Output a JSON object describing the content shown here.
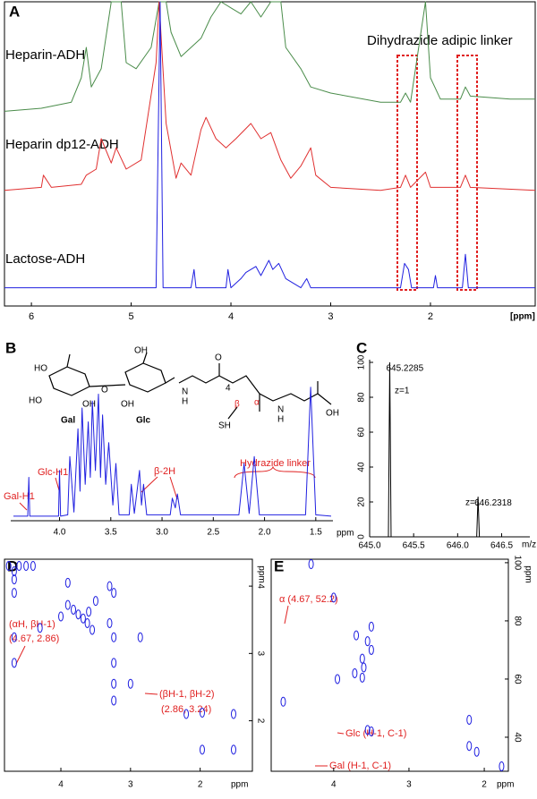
{
  "chart_data": [
    {
      "panel": "A",
      "type": "line",
      "x_label": "[ppm]",
      "annotations": [
        "Dihydrazide adipic linker"
      ],
      "xlim": [
        6.27,
        0.95
      ],
      "xticks": [
        6,
        5,
        4,
        3,
        2
      ],
      "ylim": [
        0,
        100
      ],
      "series": [
        {
          "name": "Heparin-ADH",
          "color": "#4a8c4a",
          "x": [
            6.27,
            5.9,
            5.6,
            5.5,
            5.45,
            5.4,
            5.3,
            5.2,
            5.1,
            5.05,
            4.95,
            4.8,
            4.72,
            4.65,
            4.6,
            4.5,
            4.3,
            4.2,
            4.1,
            4.0,
            3.9,
            3.8,
            3.7,
            3.6,
            3.5,
            3.45,
            3.3,
            3.2,
            3.0,
            2.5,
            2.3,
            2.25,
            2.2,
            2.05,
            2.0,
            1.9,
            1.7,
            1.65,
            1.6,
            1.2,
            0.95
          ],
          "values": [
            64,
            65,
            67,
            75,
            85,
            72,
            78,
            100,
            100,
            80,
            78,
            85,
            100,
            100,
            90,
            82,
            88,
            95,
            100,
            98,
            96,
            100,
            95,
            100,
            100,
            85,
            78,
            72,
            70,
            67,
            67,
            70,
            67,
            100,
            75,
            68,
            68,
            72,
            69,
            68,
            68
          ]
        },
        {
          "name": "Heparin dp12-ADH",
          "color": "#e03030",
          "x": [
            6.27,
            5.9,
            5.88,
            5.8,
            5.5,
            5.45,
            5.35,
            5.3,
            5.2,
            5.15,
            5.05,
            4.9,
            4.75,
            4.72,
            4.65,
            4.55,
            4.5,
            4.4,
            4.3,
            4.25,
            4.15,
            4.05,
            3.95,
            3.8,
            3.7,
            3.6,
            3.5,
            3.4,
            3.3,
            3.2,
            3.15,
            3.0,
            2.5,
            2.3,
            2.25,
            2.2,
            2.05,
            2.0,
            1.7,
            1.65,
            1.6,
            0.95
          ],
          "values": [
            38,
            39,
            43,
            39,
            40,
            43,
            45,
            55,
            47,
            52,
            45,
            48,
            80,
            100,
            60,
            42,
            47,
            43,
            58,
            62,
            55,
            52,
            55,
            60,
            55,
            57,
            48,
            42,
            46,
            52,
            43,
            39,
            38,
            39,
            43,
            39,
            44,
            39,
            39,
            43,
            39,
            38
          ]
        },
        {
          "name": "Lactose-ADH",
          "color": "#2020e0",
          "x": [
            6.27,
            4.75,
            4.71,
            4.68,
            4.4,
            4.37,
            4.35,
            4.05,
            4.03,
            4.0,
            3.9,
            3.85,
            3.75,
            3.7,
            3.62,
            3.58,
            3.52,
            3.45,
            3.3,
            3.24,
            3.2,
            2.3,
            2.26,
            2.22,
            2.19,
            1.97,
            1.95,
            1.93,
            1.68,
            1.65,
            1.62,
            0.95
          ],
          "values": [
            6,
            6,
            100,
            6,
            6,
            12,
            6,
            6,
            12,
            6,
            9,
            11,
            13,
            10,
            15,
            12,
            14,
            9,
            6,
            9,
            6,
            6,
            14,
            12,
            6,
            6,
            10,
            6,
            6,
            17,
            6,
            6
          ]
        }
      ]
    },
    {
      "panel": "B",
      "type": "line",
      "x_label": "ppm",
      "annotations": [
        "Gal-H1",
        "Glc-H1",
        "β-2H",
        "Hydrazide linker",
        "Gal",
        "Glc",
        "HO",
        "HO",
        "OH",
        "O",
        "OH",
        "OH",
        "N",
        "H",
        "4",
        "β",
        "α",
        "SH",
        "O",
        "OH",
        "N",
        "H"
      ],
      "xlim": [
        4.45,
        1.35
      ],
      "xticks": [
        {
          "value": 4,
          "label": "4.0"
        },
        3.5,
        {
          "value": 3,
          "label": "3.0"
        },
        2.5,
        {
          "value": 2,
          "label": "2.0"
        },
        1.5
      ],
      "ylim": [
        0,
        100
      ],
      "series": [
        {
          "color": "#2020e0",
          "x": [
            4.45,
            4.31,
            4.3,
            4.29,
            4.01,
            4.0,
            3.99,
            3.92,
            3.9,
            3.86,
            3.82,
            3.8,
            3.78,
            3.75,
            3.72,
            3.7,
            3.68,
            3.65,
            3.62,
            3.6,
            3.58,
            3.55,
            3.52,
            3.48,
            3.45,
            3.42,
            3.32,
            3.3,
            3.27,
            3.22,
            3.2,
            3.18,
            3.15,
            2.92,
            2.9,
            2.87,
            2.85,
            2.82,
            2.25,
            2.2,
            2.15,
            2.1,
            2.05,
            1.6,
            1.55,
            1.5,
            1.35
          ],
          "values": [
            2,
            2,
            30,
            2,
            2,
            35,
            2,
            3,
            45,
            5,
            65,
            20,
            80,
            25,
            70,
            30,
            85,
            35,
            90,
            30,
            75,
            25,
            55,
            10,
            40,
            3,
            3,
            25,
            4,
            35,
            10,
            25,
            3,
            3,
            15,
            8,
            18,
            3,
            3,
            40,
            4,
            45,
            3,
            3,
            95,
            3,
            2
          ]
        }
      ]
    },
    {
      "panel": "C",
      "type": "stem",
      "x_label": "m/z",
      "annotations": [
        "z=1",
        "z=1"
      ],
      "xlim": [
        645,
        646.8
      ],
      "xticks": [
        {
          "value": 645,
          "label": "645.0"
        },
        645.5,
        {
          "value": 646,
          "label": "646.0"
        },
        646.5
      ],
      "ylim": [
        0,
        100
      ],
      "yticks": [
        0,
        20,
        40,
        60,
        80,
        100
      ],
      "color": "#000000",
      "x": [
        645.2285,
        646.2318
      ],
      "values": [
        100,
        23
      ]
    },
    {
      "panel": "D",
      "type": "scatter",
      "x_label": "ppm",
      "y_label": "ppm",
      "annotations": [
        "(αH, βH-1)",
        "(4.67, 2.86)",
        "(βH-1, βH-2)",
        "(2.86, 3.24)"
      ],
      "xlim": [
        4.81,
        1.25
      ],
      "xticks": [
        4,
        3,
        2
      ],
      "ylim": [
        1.25,
        4.4
      ],
      "yticks": [
        2,
        3,
        4
      ],
      "color": "#2020e0",
      "x": [
        1.97,
        1.52,
        2.2,
        1.97,
        1.52,
        3.24,
        3.24,
        3.24,
        2.86,
        3.24,
        3.0,
        3.3,
        3.55,
        3.62,
        3.68,
        3.75,
        3.82,
        3.9,
        4.0,
        3.5,
        3.6,
        3.3,
        3.24,
        4.3,
        3.9,
        4.67,
        4.67,
        4.67,
        4.67,
        4.75,
        4.6,
        4.5,
        4.4,
        4.67
      ],
      "values": [
        1.57,
        1.57,
        2.1,
        2.12,
        2.1,
        2.3,
        2.55,
        2.86,
        3.24,
        3.24,
        2.55,
        3.45,
        3.35,
        3.45,
        3.52,
        3.58,
        3.65,
        3.72,
        3.55,
        3.78,
        3.62,
        4.0,
        3.9,
        3.38,
        4.05,
        2.86,
        3.24,
        3.9,
        4.1,
        4.3,
        4.3,
        4.3,
        4.3,
        4.22
      ]
    },
    {
      "panel": "E",
      "type": "scatter",
      "x_label": "ppm",
      "y_label": "ppm",
      "annotations": [
        "α (4.67, 52.2)",
        "Glc (H-1, C-1)",
        "Gal (H-1, C-1)"
      ],
      "xlim": [
        4.83,
        1.68
      ],
      "xticks": [
        4,
        3,
        2
      ],
      "ylim": [
        28.3,
        101.2
      ],
      "yticks": [
        40,
        60,
        80,
        100
      ],
      "color": "#2020e0",
      "x": [
        1.77,
        2.1,
        2.2,
        2.2,
        3.5,
        3.55,
        4.67,
        3.95,
        3.62,
        3.72,
        3.6,
        3.62,
        3.5,
        3.55,
        3.7,
        3.5,
        4.0,
        4.3
      ],
      "values": [
        30,
        35,
        37,
        46,
        42,
        42.5,
        52.2,
        60,
        60.5,
        62,
        64,
        67,
        70,
        73,
        75,
        78,
        88,
        99.5
      ]
    }
  ]
}
